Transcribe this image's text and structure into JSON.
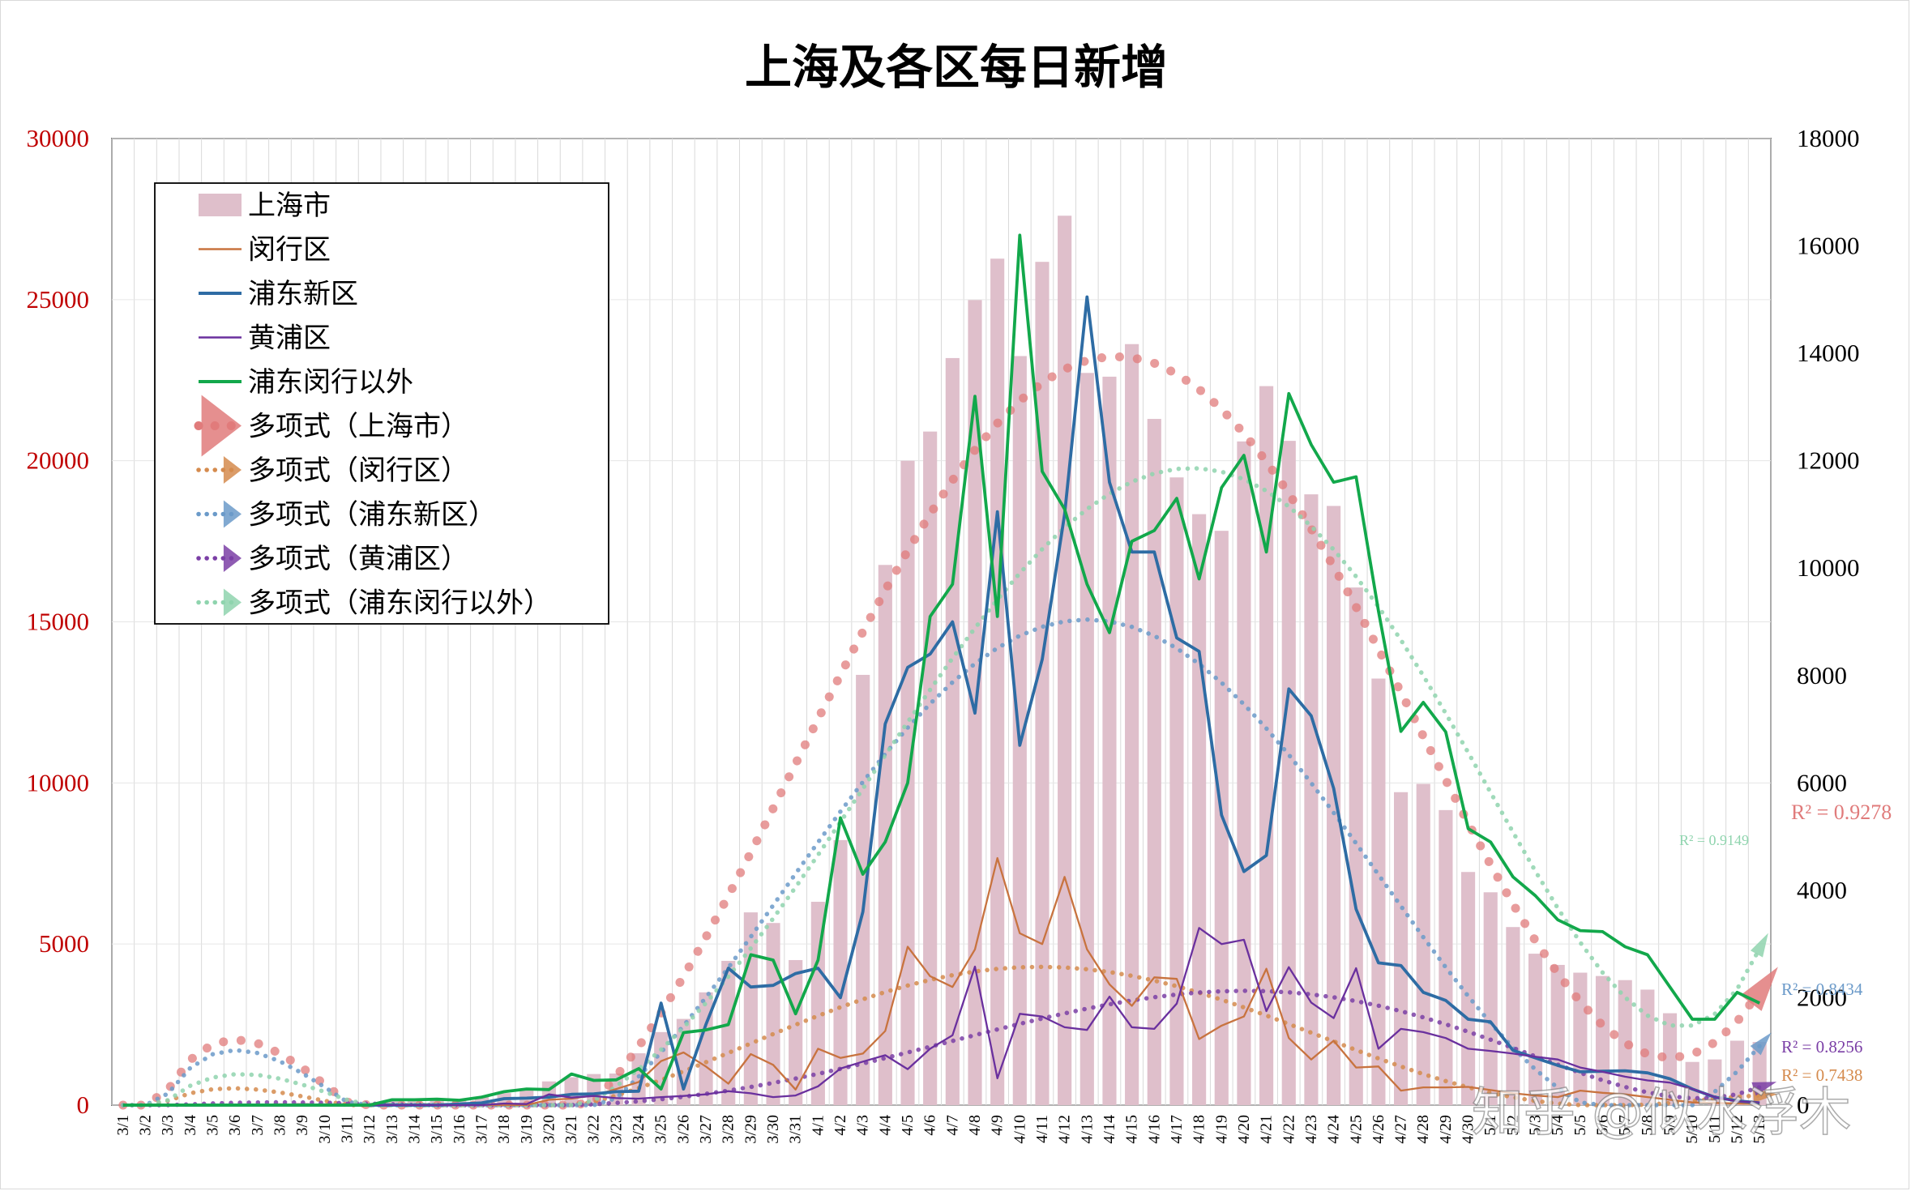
{
  "chart_data": {
    "type": "bar+line",
    "title": "上海及各区每日新增",
    "x": [
      "3/1",
      "3/2",
      "3/3",
      "3/4",
      "3/5",
      "3/6",
      "3/7",
      "3/8",
      "3/9",
      "3/10",
      "3/11",
      "3/12",
      "3/13",
      "3/14",
      "3/15",
      "3/16",
      "3/17",
      "3/18",
      "3/19",
      "3/20",
      "3/21",
      "3/22",
      "3/23",
      "3/24",
      "3/25",
      "3/26",
      "3/27",
      "3/28",
      "3/29",
      "3/30",
      "3/31",
      "4/1",
      "4/2",
      "4/3",
      "4/4",
      "4/5",
      "4/6",
      "4/7",
      "4/8",
      "4/9",
      "4/10",
      "4/11",
      "4/12",
      "4/13",
      "4/14",
      "4/15",
      "4/16",
      "4/17",
      "4/18",
      "4/19",
      "4/20",
      "4/21",
      "4/22",
      "4/23",
      "4/24",
      "4/25",
      "4/26",
      "4/27",
      "4/28",
      "4/29",
      "4/30",
      "5/1",
      "5/2",
      "5/3",
      "5/4",
      "5/5",
      "5/6",
      "5/7",
      "5/8",
      "5/9",
      "5/10",
      "5/11",
      "5/12",
      "5/13"
    ],
    "y_left": {
      "ylim": [
        0,
        30000
      ],
      "ticks": [
        "0",
        "5000",
        "10000",
        "15000",
        "20000",
        "25000",
        "30000"
      ],
      "color": "#c00000"
    },
    "y_right": {
      "ylim": [
        0,
        18000
      ],
      "ticks": [
        "0",
        "2000",
        "4000",
        "6000",
        "8000",
        "10000",
        "12000",
        "14000",
        "16000",
        "18000"
      ],
      "color": "#000000"
    },
    "grid": "vertical",
    "legend": "top-left",
    "series": [
      {
        "name": "上海市",
        "kind": "bar",
        "axis": "left",
        "color": "#dfbfcb",
        "values": [
          3,
          4,
          6,
          18,
          3,
          43,
          50,
          64,
          76,
          62,
          83,
          64,
          130,
          202,
          152,
          158,
          260,
          374,
          492,
          736,
          865,
          965,
          981,
          1609,
          2267,
          2676,
          3500,
          4477,
          5982,
          5653,
          4502,
          6311,
          8226,
          13354,
          16766,
          20000,
          20906,
          23187,
          24987,
          26272,
          23249,
          26173,
          27605,
          22725,
          22609,
          23620,
          21298,
          19483,
          18342,
          17825,
          20599,
          22316,
          20617,
          18957,
          18597,
          16066,
          13239,
          9713,
          9971,
          9157,
          7236,
          6606,
          5527,
          4700,
          4352,
          4111,
          4007,
          3880,
          3585,
          2852,
          1340,
          1418,
          1999,
          1960
        ]
      },
      {
        "name": "闵行区",
        "kind": "line",
        "axis": "right",
        "color": "#c8733f",
        "values": [
          0,
          0,
          0,
          0,
          0,
          0,
          0,
          0,
          0,
          0,
          0,
          0,
          0,
          0,
          0,
          0,
          0,
          0,
          2,
          100,
          120,
          180,
          300,
          430,
          820,
          980,
          720,
          400,
          950,
          750,
          290,
          1050,
          880,
          960,
          1380,
          2950,
          2400,
          2200,
          2900,
          4600,
          3200,
          3000,
          4250,
          2900,
          2250,
          1850,
          2380,
          2350,
          1230,
          1480,
          1650,
          2540,
          1250,
          850,
          1200,
          700,
          720,
          270,
          330,
          330,
          340,
          280,
          220,
          180,
          150,
          270,
          230,
          200,
          150,
          100,
          50,
          40,
          30,
          20
        ]
      },
      {
        "name": "浦东新区",
        "kind": "line",
        "axis": "right",
        "color": "#2e6ca4",
        "values": [
          0,
          0,
          0,
          0,
          0,
          0,
          0,
          0,
          0,
          0,
          0,
          0,
          0,
          0,
          0,
          20,
          40,
          120,
          130,
          150,
          200,
          210,
          250,
          260,
          1900,
          300,
          1500,
          2550,
          2200,
          2230,
          2450,
          2550,
          2000,
          3600,
          7100,
          8150,
          8400,
          9000,
          7300,
          11050,
          6700,
          8300,
          11000,
          15050,
          11600,
          10300,
          10300,
          8700,
          8450,
          5400,
          4350,
          4650,
          7750,
          7250,
          5900,
          3650,
          2650,
          2600,
          2100,
          1950,
          1600,
          1550,
          1020,
          880,
          740,
          620,
          630,
          640,
          600,
          490,
          300,
          150,
          80,
          40
        ]
      },
      {
        "name": "黄浦区",
        "kind": "line",
        "axis": "right",
        "color": "#6a309e",
        "values": [
          0,
          0,
          0,
          0,
          0,
          0,
          0,
          0,
          0,
          0,
          0,
          0,
          0,
          0,
          0,
          0,
          0,
          30,
          20,
          200,
          140,
          170,
          130,
          120,
          150,
          170,
          200,
          260,
          220,
          150,
          180,
          350,
          680,
          810,
          930,
          670,
          1050,
          1300,
          2580,
          500,
          1700,
          1650,
          1450,
          1400,
          2020,
          1450,
          1420,
          1890,
          3300,
          3000,
          3080,
          1750,
          2570,
          1910,
          1620,
          2550,
          1050,
          1420,
          1360,
          1250,
          1050,
          1010,
          960,
          900,
          850,
          700,
          620,
          530,
          460,
          420,
          300,
          150,
          70,
          50
        ]
      },
      {
        "name": "浦东闵行以外",
        "kind": "line",
        "axis": "right",
        "color": "#12a84b",
        "values": [
          0,
          0,
          0,
          0,
          0,
          0,
          0,
          0,
          0,
          0,
          0,
          0,
          100,
          100,
          110,
          90,
          150,
          250,
          300,
          290,
          580,
          460,
          470,
          680,
          300,
          1350,
          1400,
          1500,
          2800,
          2700,
          1700,
          2700,
          5350,
          4300,
          4900,
          6000,
          9100,
          9700,
          13200,
          9100,
          16200,
          11800,
          11100,
          9700,
          8800,
          10500,
          10700,
          11300,
          9800,
          11500,
          12100,
          10300,
          13250,
          12300,
          11600,
          11700,
          9200,
          6960,
          7500,
          6950,
          5150,
          4900,
          4250,
          3900,
          3450,
          3250,
          3230,
          2950,
          2800,
          2200,
          1600,
          1600,
          2100,
          1900
        ]
      }
    ],
    "trendlines": [
      {
        "name": "多项式（上海市）",
        "color": "#e07b7b",
        "r2": "R² = 0.9278"
      },
      {
        "name": "多项式（闵行区）",
        "color": "#d58b4e",
        "r2": "R² = 0.7438"
      },
      {
        "name": "多项式（浦东新区）",
        "color": "#6b9ac9",
        "r2": "R² = 0.8434"
      },
      {
        "name": "多项式（黄浦区）",
        "color": "#7b3fa6",
        "r2": "R² = 0.8256"
      },
      {
        "name": "多项式（浦东闵行以外）",
        "color": "#8fd4ae",
        "r2": "R² = 0.9149"
      }
    ],
    "watermark": "知乎 @似水浮木"
  }
}
